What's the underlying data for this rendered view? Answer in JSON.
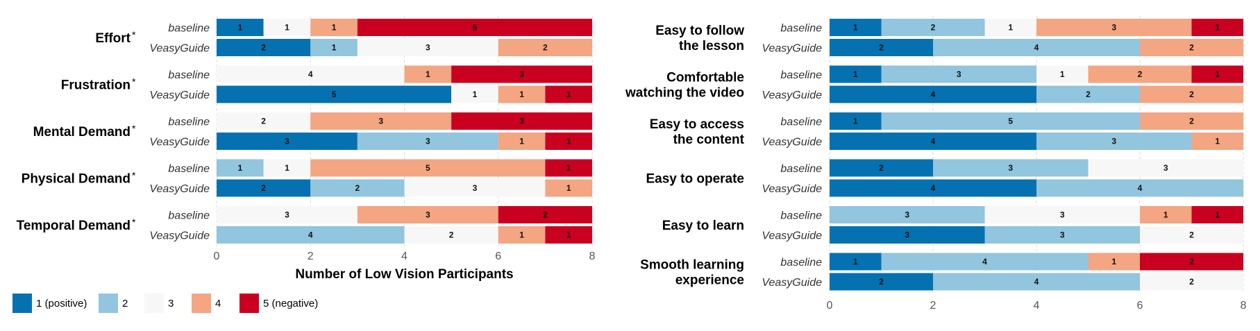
{
  "colors": {
    "1": "#0571b0",
    "2": "#92c5de",
    "3": "#f7f7f7",
    "4": "#f4a582",
    "5": "#ca0020"
  },
  "legend": [
    {
      "key": "1",
      "label": "1 (positive)"
    },
    {
      "key": "2",
      "label": "2"
    },
    {
      "key": "3",
      "label": "3"
    },
    {
      "key": "4",
      "label": "4"
    },
    {
      "key": "5",
      "label": "5 (negative)"
    }
  ],
  "chart_data": [
    {
      "type": "bar",
      "orientation": "horizontal",
      "stacked": true,
      "xlabel": "Number of Low Vision Participants",
      "xlim": [
        0,
        8
      ],
      "xticks": [
        0,
        2,
        4,
        6,
        8
      ],
      "grid": true,
      "groups": [
        "baseline",
        "VeasyGuide"
      ],
      "categories": [
        {
          "label": "Effort",
          "mark": "*",
          "baseline": [
            1,
            0,
            1,
            1,
            5
          ],
          "VeasyGuide": [
            2,
            1,
            3,
            2,
            0
          ]
        },
        {
          "label": "Frustration",
          "mark": "*",
          "baseline": [
            0,
            0,
            4,
            1,
            3
          ],
          "VeasyGuide": [
            5,
            0,
            1,
            1,
            1
          ]
        },
        {
          "label": "Mental Demand",
          "mark": "*",
          "baseline": [
            0,
            0,
            2,
            3,
            3
          ],
          "VeasyGuide": [
            3,
            3,
            0,
            1,
            1
          ]
        },
        {
          "label": "Physical Demand",
          "mark": "*",
          "baseline": [
            0,
            1,
            1,
            5,
            1
          ],
          "VeasyGuide": [
            2,
            2,
            3,
            1,
            0
          ]
        },
        {
          "label": "Temporal Demand",
          "mark": "*",
          "baseline": [
            0,
            0,
            3,
            3,
            2
          ],
          "VeasyGuide": [
            0,
            4,
            2,
            1,
            1
          ]
        }
      ]
    },
    {
      "type": "bar",
      "orientation": "horizontal",
      "stacked": true,
      "xlabel": "",
      "xlim": [
        0,
        8
      ],
      "xticks": [
        0,
        2,
        4,
        6,
        8
      ],
      "grid": true,
      "groups": [
        "baseline",
        "VeasyGuide"
      ],
      "categories": [
        {
          "label": "Easy to follow the lesson",
          "lines": [
            "Easy to follow",
            "the lesson"
          ],
          "baseline": [
            1,
            2,
            1,
            3,
            1
          ],
          "VeasyGuide": [
            2,
            4,
            0,
            2,
            0
          ]
        },
        {
          "label": "Comfortable watching the video",
          "lines": [
            "Comfortable",
            "watching the video"
          ],
          "baseline": [
            1,
            3,
            1,
            2,
            1
          ],
          "VeasyGuide": [
            4,
            2,
            0,
            2,
            0
          ]
        },
        {
          "label": "Easy to access the content",
          "lines": [
            "Easy to access",
            "the content"
          ],
          "baseline": [
            1,
            5,
            0,
            2,
            0
          ],
          "VeasyGuide": [
            4,
            3,
            0,
            1,
            0
          ]
        },
        {
          "label": "Easy to operate",
          "lines": [
            "Easy to operate"
          ],
          "baseline": [
            2,
            3,
            3,
            0,
            0
          ],
          "VeasyGuide": [
            4,
            4,
            0,
            0,
            0
          ]
        },
        {
          "label": "Easy to learn",
          "lines": [
            "Easy to learn"
          ],
          "baseline": [
            0,
            3,
            3,
            1,
            1
          ],
          "VeasyGuide": [
            3,
            3,
            2,
            0,
            0
          ]
        },
        {
          "label": "Smooth learning experience",
          "lines": [
            "Smooth learning",
            "experience"
          ],
          "baseline": [
            1,
            4,
            0,
            1,
            2
          ],
          "VeasyGuide": [
            2,
            4,
            2,
            0,
            0
          ]
        }
      ]
    }
  ]
}
